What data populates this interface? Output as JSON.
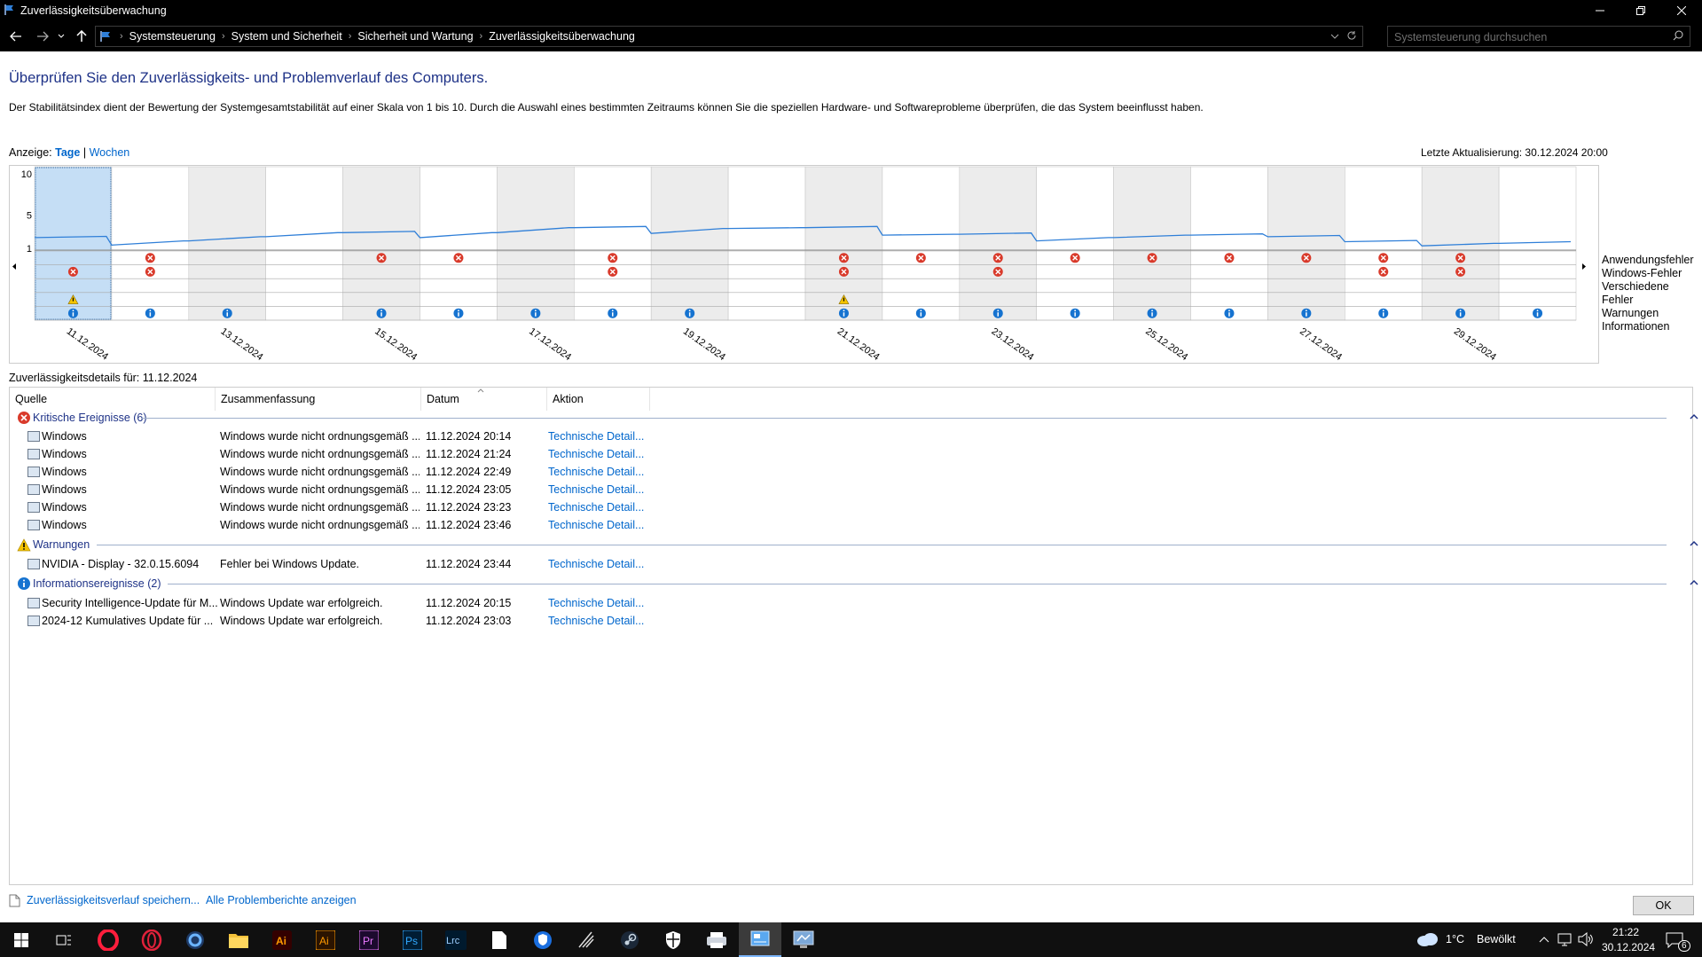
{
  "window": {
    "title": "Zuverlässigkeitsüberwachung"
  },
  "address": {
    "crumbs": [
      "Systemsteuerung",
      "System und Sicherheit",
      "Sicherheit und Wartung",
      "Zuverlässigkeitsüberwachung"
    ],
    "search_placeholder": "Systemsteuerung durchsuchen"
  },
  "page": {
    "heading": "Überprüfen Sie den Zuverlässigkeits- und Problemverlauf des Computers.",
    "description": "Der Stabilitätsindex dient der Bewertung der Systemgesamtstabilität auf einer Skala von 1 bis 10. Durch die Auswahl eines bestimmten Zeitraums können Sie die speziellen Hardware- und Softwareprobleme überprüfen, die das System beeinflusst haben.",
    "view_label": "Anzeige:",
    "view_days": "Tage",
    "view_sep": "|",
    "view_weeks": "Wochen",
    "last_update": "Letzte Aktualisierung: 30.12.2024 20:00"
  },
  "chart_data": {
    "type": "line",
    "y_ticks": [
      "10",
      "5",
      "1"
    ],
    "ylim": [
      1,
      10
    ],
    "dates": [
      "11.12.2024",
      "12.12.2024",
      "13.12.2024",
      "14.12.2024",
      "15.12.2024",
      "16.12.2024",
      "17.12.2024",
      "18.12.2024",
      "19.12.2024",
      "20.12.2024",
      "21.12.2024",
      "22.12.2024",
      "23.12.2024",
      "24.12.2024",
      "25.12.2024",
      "26.12.2024",
      "27.12.2024",
      "28.12.2024",
      "29.12.2024",
      "30.12.2024"
    ],
    "x_tick_labels": [
      "11.12.2024",
      "13.12.2024",
      "15.12.2024",
      "17.12.2024",
      "19.12.2024",
      "21.12.2024",
      "23.12.2024",
      "25.12.2024",
      "27.12.2024",
      "29.12.2024"
    ],
    "selected_index": 0,
    "shaded_days": [
      0,
      2,
      4,
      6,
      8,
      10,
      12,
      14,
      16,
      18
    ],
    "series": [
      {
        "values": [
          2.3,
          1.4,
          1.9,
          2.4,
          2.9,
          2.3,
          2.9,
          3.5,
          2.8,
          3.4,
          3.5,
          2.6,
          2.7,
          1.9,
          2.3,
          2.6,
          2.4,
          1.8,
          1.3,
          1.6
        ]
      }
    ],
    "events": {
      "app_errors": [
        1,
        4,
        5,
        7,
        10,
        11,
        12,
        13,
        14,
        15,
        16,
        17,
        18
      ],
      "windows_errors": [
        0,
        1,
        7,
        10,
        12,
        17,
        18
      ],
      "misc_errors": [],
      "warnings": [
        0,
        10
      ],
      "info": [
        0,
        1,
        2,
        4,
        5,
        6,
        7,
        8,
        10,
        11,
        12,
        13,
        14,
        15,
        16,
        17,
        18,
        19
      ]
    },
    "legend": [
      "Anwendungsfehler",
      "Windows-Fehler",
      "Verschiedene Fehler",
      "Warnungen",
      "Informationen"
    ]
  },
  "details": {
    "title": "Zuverlässigkeitsdetails für: 11.12.2024",
    "columns": [
      "Quelle",
      "Zusammenfassung",
      "Datum",
      "Aktion"
    ],
    "groups": [
      {
        "label": "Kritische Ereignisse (6)",
        "icon": "error-icon",
        "rows": [
          {
            "source": "Windows",
            "summary": "Windows wurde nicht ordnungsgemäß ...",
            "date": "11.12.2024 20:14",
            "action": "Technische Detail..."
          },
          {
            "source": "Windows",
            "summary": "Windows wurde nicht ordnungsgemäß ...",
            "date": "11.12.2024 21:24",
            "action": "Technische Detail..."
          },
          {
            "source": "Windows",
            "summary": "Windows wurde nicht ordnungsgemäß ...",
            "date": "11.12.2024 22:49",
            "action": "Technische Detail..."
          },
          {
            "source": "Windows",
            "summary": "Windows wurde nicht ordnungsgemäß ...",
            "date": "11.12.2024 23:05",
            "action": "Technische Detail..."
          },
          {
            "source": "Windows",
            "summary": "Windows wurde nicht ordnungsgemäß ...",
            "date": "11.12.2024 23:23",
            "action": "Technische Detail..."
          },
          {
            "source": "Windows",
            "summary": "Windows wurde nicht ordnungsgemäß ...",
            "date": "11.12.2024 23:46",
            "action": "Technische Detail..."
          }
        ]
      },
      {
        "label": "Warnungen",
        "icon": "warning-icon",
        "rows": [
          {
            "source": "NVIDIA - Display - 32.0.15.6094",
            "summary": "Fehler bei Windows Update.",
            "date": "11.12.2024 23:44",
            "action": "Technische Detail..."
          }
        ]
      },
      {
        "label": "Informationsereignisse (2)",
        "icon": "info-icon",
        "rows": [
          {
            "source": "Security Intelligence-Update für M...",
            "summary": "Windows Update war erfolgreich.",
            "date": "11.12.2024 20:15",
            "action": "Technische Detail..."
          },
          {
            "source": "2024-12 Kumulatives Update für ...",
            "summary": "Windows Update war erfolgreich.",
            "date": "11.12.2024 23:03",
            "action": "Technische Detail..."
          }
        ]
      }
    ]
  },
  "footer": {
    "save_link": "Zuverlässigkeitsverlauf speichern...",
    "all_reports_link": "Alle Problemberichte anzeigen",
    "ok_label": "OK"
  },
  "taskbar": {
    "apps": [
      "windows-start",
      "task-view",
      "opera-gx",
      "opera",
      "cortana",
      "file-explorer",
      "illustrator-dark",
      "illustrator",
      "premiere",
      "photoshop",
      "lightroom-classic",
      "notepad",
      "shield-app",
      "razer",
      "steam",
      "security-shield",
      "printer-app",
      "reliability-monitor",
      "remote-app"
    ],
    "weather_temp": "1°C",
    "weather_text": "Bewölkt",
    "time": "21:22",
    "date": "30.12.2024",
    "notifications": "6"
  },
  "colors": {
    "heading": "#1e3287",
    "link": "#0066cc",
    "line": "#2f7fd8",
    "error": "#d93a2b",
    "info": "#1673d0",
    "warning": "#f5c400",
    "selected": "#c5def5"
  }
}
